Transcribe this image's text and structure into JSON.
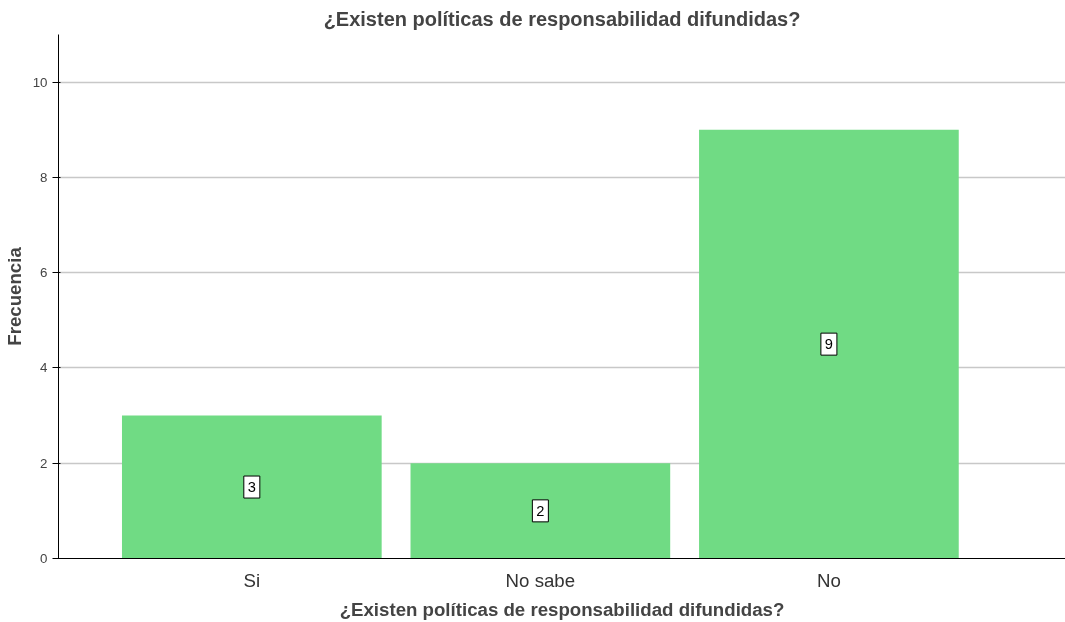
{
  "chart_data": {
    "type": "bar",
    "title": "¿Existen políticas de responsabilidad difundidas?",
    "xlabel": "¿Existen políticas de responsabilidad difundidas?",
    "ylabel": "Frecuencia",
    "categories": [
      "Si",
      "No sabe",
      "No"
    ],
    "values": [
      3,
      2,
      9
    ],
    "color": "#70db84",
    "ylim": [
      0,
      11
    ],
    "yticks": [
      0,
      2,
      4,
      6,
      8,
      10
    ],
    "grid": "y",
    "data_labels": true
  }
}
